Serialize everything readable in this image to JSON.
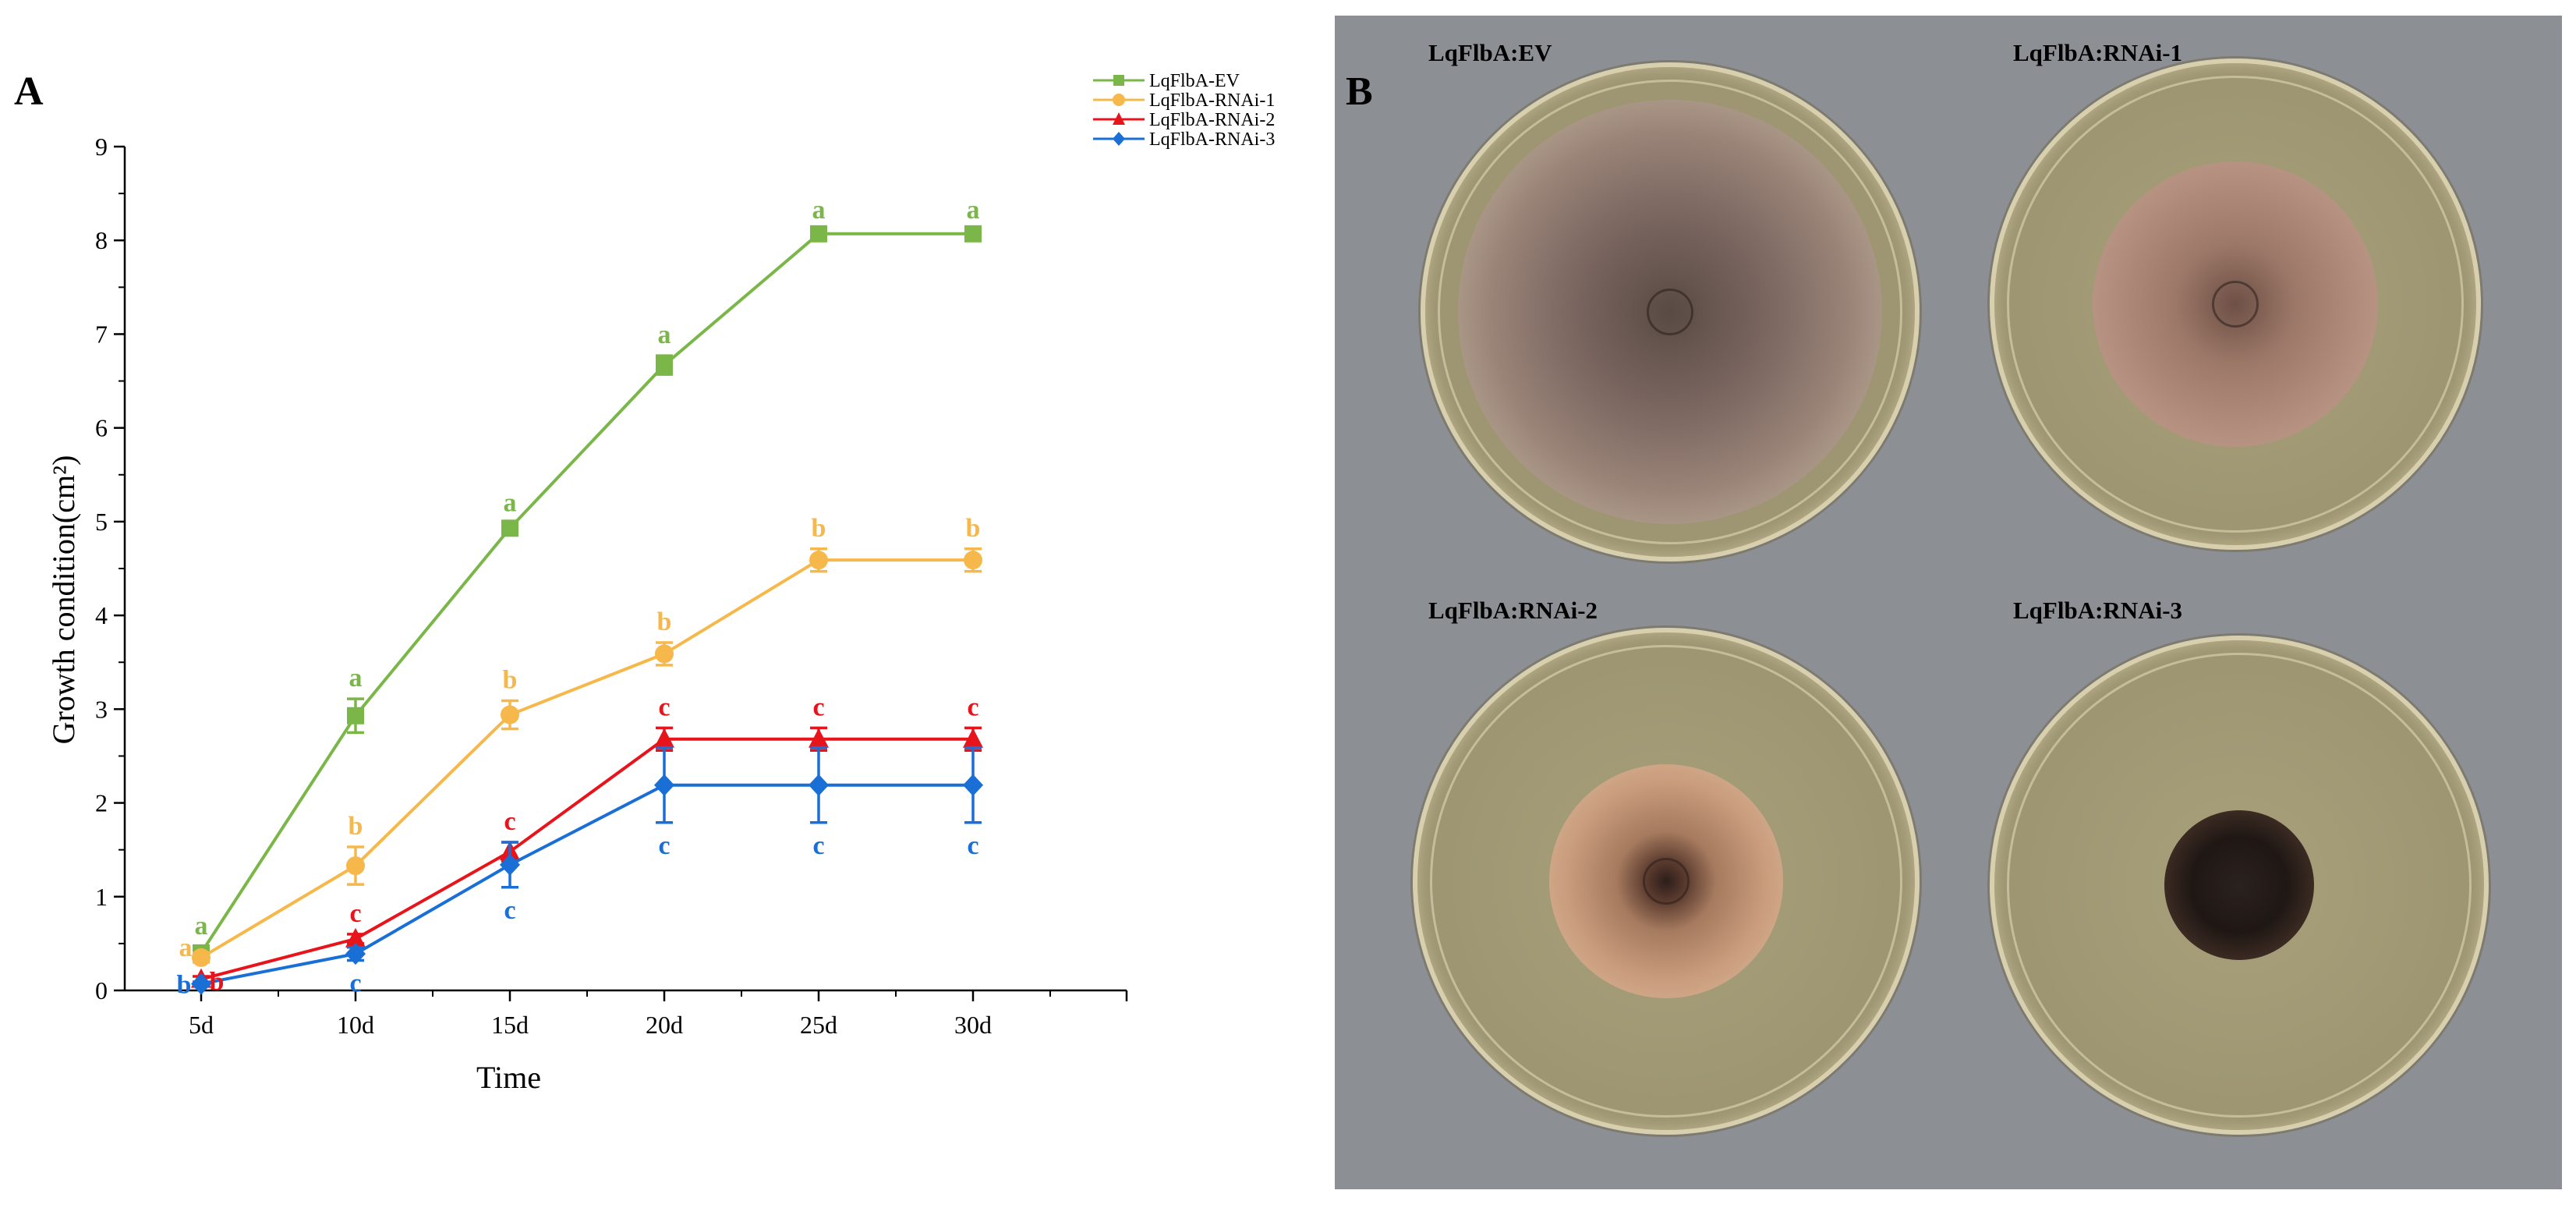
{
  "panels": {
    "left_letter": "A",
    "right_letter": "B"
  },
  "chart_data": {
    "type": "line",
    "xlabel": "Time",
    "ylabel": "Growth condition(cm²)",
    "categories": [
      "5d",
      "10d",
      "15d",
      "20d",
      "25d",
      "30d"
    ],
    "ylim": [
      0,
      9
    ],
    "yticks": [
      "0",
      "1",
      "2",
      "3",
      "4",
      "5",
      "6",
      "7",
      "8",
      "9"
    ],
    "legend_position": "top-right",
    "series": [
      {
        "name": "LqFlbA-EV",
        "color": "#7ab648",
        "marker": "square",
        "values": [
          0.4,
          2.93,
          4.93,
          6.67,
          8.07,
          8.07
        ],
        "errors": [
          0.05,
          0.18,
          0.05,
          0.1,
          0.03,
          0.03
        ],
        "letters": [
          "a",
          "a",
          "a",
          "a",
          "a",
          "a"
        ]
      },
      {
        "name": "LqFlbA-RNAi-1",
        "color": "#f7b84b",
        "marker": "circle",
        "values": [
          0.35,
          1.33,
          2.94,
          3.59,
          4.59,
          4.59
        ],
        "errors": [
          0.05,
          0.2,
          0.15,
          0.12,
          0.12,
          0.12
        ],
        "letters": [
          "a",
          "b",
          "b",
          "b",
          "b",
          "b"
        ]
      },
      {
        "name": "LqFlbA-RNAi-2",
        "color": "#e8141c",
        "marker": "triangle",
        "values": [
          0.12,
          0.55,
          1.48,
          2.68,
          2.68,
          2.68
        ],
        "errors": [
          0.03,
          0.05,
          0.1,
          0.12,
          0.12,
          0.12
        ],
        "letters": [
          "b",
          "c",
          "c",
          "c",
          "c",
          "c"
        ]
      },
      {
        "name": "LqFlbA-RNAi-3",
        "color": "#1a6fd6",
        "marker": "diamond",
        "values": [
          0.07,
          0.39,
          1.34,
          2.19,
          2.19,
          2.19
        ],
        "errors": [
          0.02,
          0.07,
          0.24,
          0.4,
          0.4,
          0.4
        ],
        "letters": [
          "b",
          "c",
          "c",
          "c",
          "c",
          "c"
        ]
      }
    ]
  },
  "plates": [
    {
      "label": "LqFlbA:EV",
      "colony_size": 0.85,
      "colony_color": "#9a8478"
    },
    {
      "label": "LqFlbA:RNAi-1",
      "colony_size": 0.58,
      "colony_color": "#a88a7c"
    },
    {
      "label": "LqFlbA:RNAi-2",
      "colony_size": 0.46,
      "colony_color": "#c9a98f"
    },
    {
      "label": "LqFlbA:RNAi-3",
      "colony_size": 0.3,
      "colony_color": "#4a3a30"
    }
  ]
}
